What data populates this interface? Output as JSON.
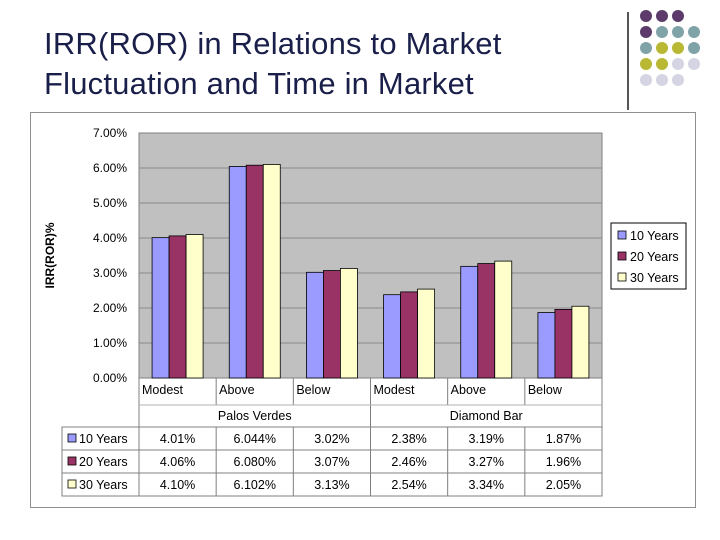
{
  "slide": {
    "title_line1": "IRR(ROR) in Relations to Market",
    "title_line2": "Fluctuation and Time in Market"
  },
  "decoration": {
    "dot_colors": [
      "#5c3a6a",
      "#7fa3a6",
      "#b9b833",
      "#d5d4e2"
    ]
  },
  "chart_data": {
    "type": "bar",
    "ylabel": "IRR(ROR)%",
    "ylim": [
      0,
      7
    ],
    "yticks": [
      "0.00%",
      "1.00%",
      "2.00%",
      "3.00%",
      "4.00%",
      "5.00%",
      "6.00%",
      "7.00%"
    ],
    "grid": true,
    "legend_position": "right",
    "categories": [
      "Modest",
      "Above",
      "Below",
      "Modest",
      "Above",
      "Below"
    ],
    "groups": [
      "Palos Verdes",
      "Diamond Bar"
    ],
    "series": [
      {
        "name": "10 Years",
        "color": "#9b9bff",
        "values": [
          4.01,
          6.044,
          3.02,
          2.38,
          3.19,
          1.87
        ],
        "labels": [
          "4.01%",
          "6.044%",
          "3.02%",
          "2.38%",
          "3.19%",
          "1.87%"
        ]
      },
      {
        "name": "20 Years",
        "color": "#993366",
        "values": [
          4.06,
          6.08,
          3.07,
          2.46,
          3.27,
          1.96
        ],
        "labels": [
          "4.06%",
          "6.080%",
          "3.07%",
          "2.46%",
          "3.27%",
          "1.96%"
        ]
      },
      {
        "name": "30 Years",
        "color": "#ffffcc",
        "values": [
          4.1,
          6.102,
          3.13,
          2.54,
          3.34,
          2.05
        ],
        "labels": [
          "4.10%",
          "6.102%",
          "3.13%",
          "2.54%",
          "3.34%",
          "2.05%"
        ]
      }
    ]
  }
}
